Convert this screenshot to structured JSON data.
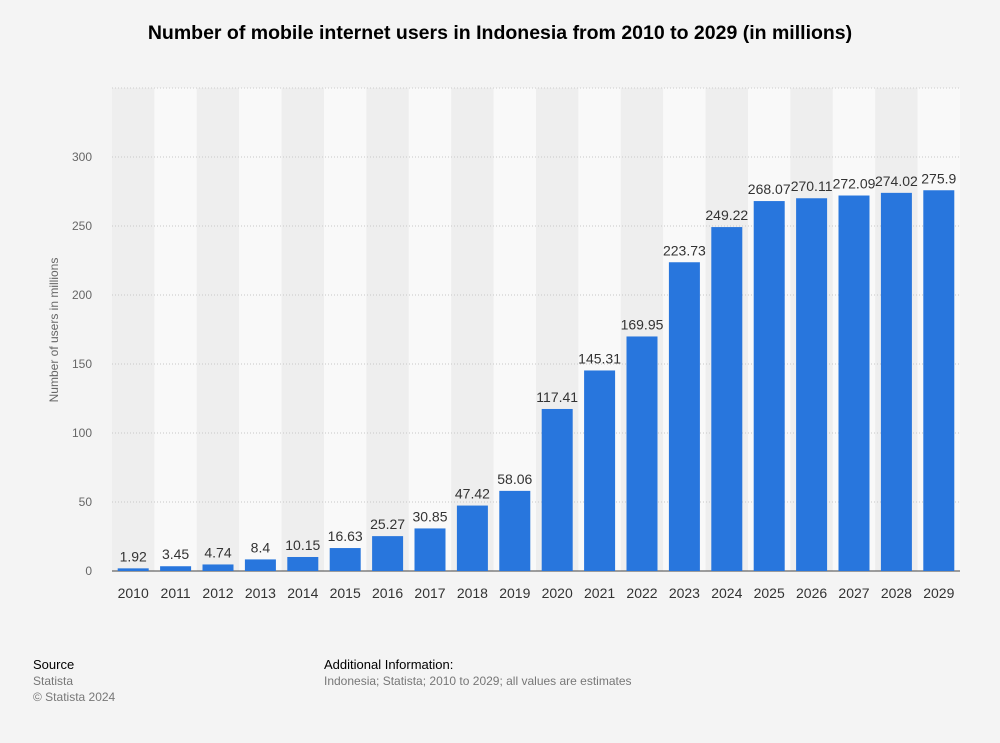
{
  "chart_data": {
    "type": "bar",
    "title": "Number of mobile internet users in Indonesia from 2010 to 2029 (in millions)",
    "categories": [
      "2010",
      "2011",
      "2012",
      "2013",
      "2014",
      "2015",
      "2016",
      "2017",
      "2018",
      "2019",
      "2020",
      "2021",
      "2022",
      "2023",
      "2024",
      "2025",
      "2026",
      "2027",
      "2028",
      "2029"
    ],
    "values": [
      1.92,
      3.45,
      4.74,
      8.4,
      10.15,
      16.63,
      25.27,
      30.85,
      47.42,
      58.06,
      117.41,
      145.31,
      169.95,
      223.73,
      249.22,
      268.07,
      270.11,
      272.09,
      274.02,
      275.9
    ],
    "value_labels": [
      "1.92",
      "3.45",
      "4.74",
      "8.4",
      "10.15",
      "16.63",
      "25.27",
      "30.85",
      "47.42",
      "58.06",
      "117.41",
      "145.31",
      "169.95",
      "223.73",
      "249.22",
      "268.07",
      "270.11",
      "272.09",
      "274.02",
      "275.9"
    ],
    "xlabel": "",
    "ylabel": "Number of users in millions",
    "ylim": [
      0,
      350
    ],
    "yticks": [
      0,
      50,
      100,
      150,
      200,
      250,
      300
    ],
    "ytick_labels": [
      "0",
      "50",
      "100",
      "150",
      "200",
      "250",
      "300"
    ],
    "grid": true,
    "legend": "none",
    "bar_color": "#2876dd"
  },
  "footer": {
    "source_heading": "Source",
    "source_name": "Statista",
    "copyright": "© Statista 2024",
    "info_heading": "Additional Information:",
    "info_text": "Indonesia; Statista; 2010 to 2029; all values are estimates"
  }
}
